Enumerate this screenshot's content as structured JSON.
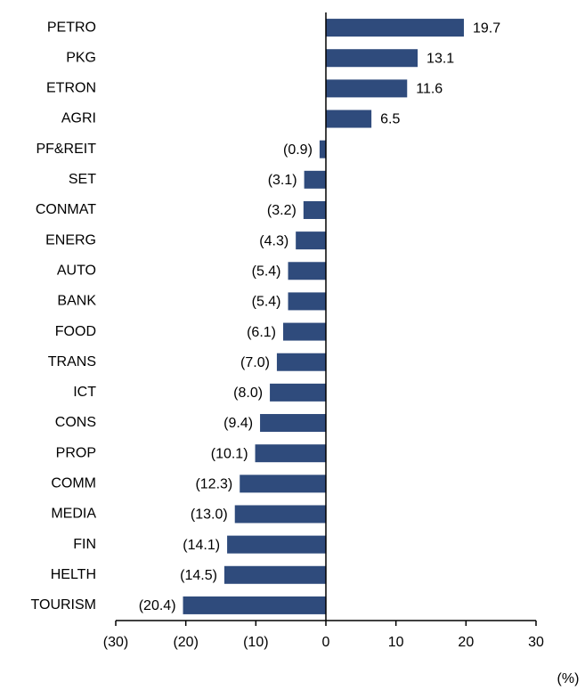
{
  "chart_data": {
    "type": "hbar",
    "categories": [
      "PETRO",
      "PKG",
      "ETRON",
      "AGRI",
      "PF&REIT",
      "SET",
      "CONMAT",
      "ENERG",
      "AUTO",
      "BANK",
      "FOOD",
      "TRANS",
      "ICT",
      "CONS",
      "PROP",
      "COMM",
      "MEDIA",
      "FIN",
      "HELTH",
      "TOURISM"
    ],
    "values": [
      19.7,
      13.1,
      11.6,
      6.5,
      -0.9,
      -3.1,
      -3.2,
      -4.3,
      -5.4,
      -5.4,
      -6.1,
      -7.0,
      -8.0,
      -9.4,
      -10.1,
      -12.3,
      -13.0,
      -14.1,
      -14.5,
      -20.4
    ],
    "value_labels": [
      "19.7",
      "13.1",
      "11.6",
      "6.5",
      "(0.9)",
      "(3.1)",
      "(3.2)",
      "(4.3)",
      "(5.4)",
      "(5.4)",
      "(6.1)",
      "(7.0)",
      "(8.0)",
      "(9.4)",
      "(10.1)",
      "(12.3)",
      "(13.0)",
      "(14.1)",
      "(14.5)",
      "(20.4)"
    ],
    "color": "#2f4b7c",
    "xlabel": "(%)",
    "xlim": [
      -30,
      30
    ],
    "xticks": [
      {
        "value": -30,
        "label": "(30)"
      },
      {
        "value": -20,
        "label": "(20)"
      },
      {
        "value": -10,
        "label": "(10)"
      },
      0,
      10,
      20,
      30
    ]
  }
}
